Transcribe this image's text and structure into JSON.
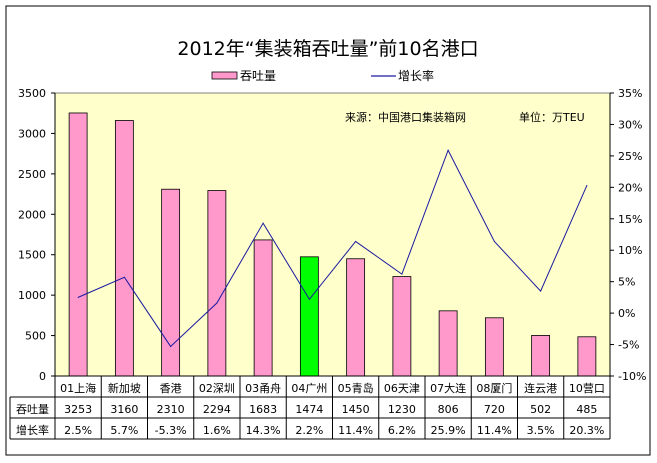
{
  "chart_data": {
    "type": "bar+line",
    "title": "2012年“集装箱吞吐量”前10名港口",
    "source_note": "来源：中国港口集装箱网",
    "unit_note": "单位：万TEU",
    "categories": [
      "01上海",
      "新加坡",
      "香港",
      "02深圳",
      "03甬舟",
      "04广州",
      "05青岛",
      "06天津",
      "07大连",
      "08厦门",
      "连云港",
      "10营口"
    ],
    "series": [
      {
        "name": "吞吐量",
        "type": "bar",
        "axis": "left",
        "color": "#ff99cc",
        "highlight_index": 5,
        "highlight_color": "#00ff00",
        "values": [
          3253,
          3160,
          2310,
          2294,
          1683,
          1474,
          1450,
          1230,
          806,
          720,
          502,
          485
        ],
        "display": [
          "3253",
          "3160",
          "2310",
          "2294",
          "1683",
          "1474",
          "1450",
          "1230",
          "806",
          "720",
          "502",
          "485"
        ]
      },
      {
        "name": "增长率",
        "type": "line",
        "axis": "right",
        "color": "#1a1aa0",
        "values": [
          2.5,
          5.7,
          -5.3,
          1.6,
          14.3,
          2.2,
          11.4,
          6.2,
          25.9,
          11.4,
          3.5,
          20.3
        ],
        "display": [
          "2.5%",
          "5.7%",
          "-5.3%",
          "1.6%",
          "14.3%",
          "2.2%",
          "11.4%",
          "6.2%",
          "25.9%",
          "11.4%",
          "3.5%",
          "20.3%"
        ]
      }
    ],
    "y_left": {
      "range": [
        0,
        3500
      ],
      "ticks": [
        "0",
        "500",
        "1000",
        "1500",
        "2000",
        "2500",
        "3000",
        "3500"
      ]
    },
    "y_right": {
      "range": [
        -10,
        35
      ],
      "ticks": [
        "-10%",
        "-5%",
        "0%",
        "5%",
        "10%",
        "15%",
        "20%",
        "25%",
        "30%",
        "35%"
      ]
    },
    "legend": "top",
    "grid": false,
    "plot_bg": "#ffffcc"
  }
}
